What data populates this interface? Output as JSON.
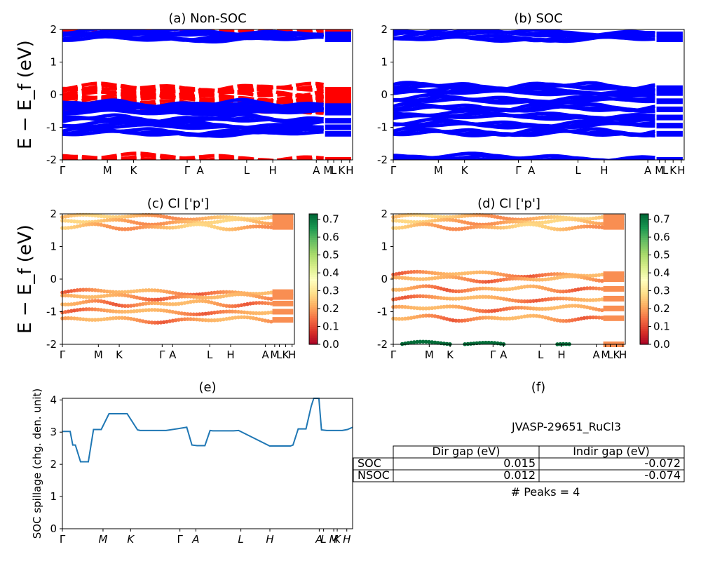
{
  "panels": {
    "a": {
      "title": "(a) Non-SOC"
    },
    "b": {
      "title": "(b) SOC"
    },
    "c": {
      "title": "(c)  Cl ['p']"
    },
    "d": {
      "title": "(d) Cl ['p']"
    },
    "e": {
      "title": "(e)"
    },
    "f": {
      "title": "(f)"
    }
  },
  "band_ylabel": "E − E_f (eV)",
  "band_yticks": [
    "2",
    "1",
    "0",
    "-1",
    "-2"
  ],
  "kpath_labels": [
    "Γ",
    "M",
    "K",
    "Γ",
    "A",
    "L",
    "H",
    "A",
    "M",
    "L",
    "K",
    "H"
  ],
  "kpath_labels_e": [
    "Γ",
    "M",
    "K",
    "Γ",
    "A",
    "L",
    "H",
    "A",
    "L",
    "M",
    "K",
    "H"
  ],
  "colorbar": {
    "ticks": [
      "0.7",
      "0.6",
      "0.5",
      "0.4",
      "0.3",
      "0.2",
      "0.1",
      "0.0"
    ],
    "colormap": "RdYlGn",
    "range": [
      0.0,
      0.73
    ]
  },
  "colors": {
    "nonsoc_up": "#ff0000",
    "nonsoc_down": "#0000ff",
    "soc": "#0000ff",
    "spillage_line": "#1f77b4"
  },
  "info": {
    "material": "JVASP-29651_RuCl3",
    "table": {
      "headers": [
        "",
        "Dir gap (eV)",
        "Indir gap (eV)"
      ],
      "rows": [
        {
          "label": "SOC",
          "dir": "0.015",
          "indir": "-0.072"
        },
        {
          "label": "NSOC",
          "dir": "0.012",
          "indir": "-0.074"
        }
      ]
    },
    "peaks": "# Peaks = 4"
  },
  "chart_data": [
    {
      "type": "line",
      "title": "(a) Non-SOC",
      "ylabel": "E − E_f (eV)",
      "ylim": [
        -2,
        2
      ],
      "x_ticks": [
        "Γ",
        "M",
        "K",
        "Γ",
        "A",
        "L",
        "H",
        "A",
        "M",
        "L",
        "K",
        "H"
      ],
      "series": [
        {
          "name": "",
          "color": "#ff0000",
          "style": "dashed",
          "approx_bands_eV": [
            1.95,
            0.15,
            0.0,
            -0.15,
            -0.3,
            -0.5,
            -2.0
          ]
        },
        {
          "name": "",
          "color": "#0000ff",
          "style": "solid",
          "approx_bands_eV": [
            1.85,
            1.7,
            -0.35,
            -0.45,
            -0.55,
            -0.8,
            -1.0,
            -1.2
          ]
        }
      ]
    },
    {
      "type": "line",
      "title": "(b) SOC",
      "ylim": [
        -2,
        2
      ],
      "x_ticks": [
        "Γ",
        "M",
        "K",
        "Γ",
        "A",
        "L",
        "H",
        "A",
        "M",
        "L",
        "K",
        "H"
      ],
      "series": [
        {
          "name": "",
          "color": "#0000ff",
          "approx_bands_eV": [
            1.85,
            1.7,
            0.2,
            0.05,
            -0.2,
            -0.45,
            -0.7,
            -0.95,
            -1.2,
            -2.0
          ]
        }
      ]
    },
    {
      "type": "scatter",
      "title": "(c)  Cl ['p']",
      "ylim": [
        -2,
        2
      ],
      "colorbar_range": [
        0.0,
        0.73
      ],
      "approx_bands_eV": [
        1.9,
        1.75,
        1.6,
        -0.4,
        -0.55,
        -0.75,
        -1.0,
        -1.25
      ]
    },
    {
      "type": "scatter",
      "title": "(d) Cl ['p']",
      "ylim": [
        -2,
        2
      ],
      "colorbar_range": [
        0.0,
        0.73
      ],
      "approx_bands_eV": [
        1.9,
        1.75,
        1.6,
        0.15,
        0.0,
        -0.3,
        -0.6,
        -0.9,
        -1.2,
        -2.0
      ]
    },
    {
      "type": "line",
      "title": "(e)",
      "ylabel": "SOC spillage (chg. den. unit)",
      "ylim": [
        0,
        4.05
      ],
      "x_ticks": [
        "Γ",
        "M",
        "K",
        "Γ",
        "A",
        "L",
        "H",
        "A",
        "L",
        "M",
        "K",
        "H"
      ],
      "x": [
        0,
        3,
        4,
        5,
        7,
        9,
        10,
        12,
        15,
        18,
        25,
        29,
        30,
        32,
        33,
        40,
        48,
        50,
        52,
        55,
        57,
        58,
        59,
        60,
        62,
        64,
        66,
        68,
        80,
        88,
        89,
        91,
        94,
        96,
        97,
        98,
        99,
        100,
        102,
        104,
        106,
        108,
        110,
        112
      ],
      "values": [
        3.02,
        3.02,
        2.6,
        2.6,
        2.08,
        2.08,
        2.08,
        3.08,
        3.08,
        3.57,
        3.57,
        3.07,
        3.05,
        3.05,
        3.05,
        3.05,
        3.15,
        2.6,
        2.58,
        2.58,
        3.05,
        3.04,
        3.04,
        3.04,
        3.04,
        3.04,
        3.04,
        3.05,
        2.57,
        2.57,
        2.6,
        3.1,
        3.1,
        3.8,
        4.05,
        4.05,
        4.05,
        3.07,
        3.05,
        3.05,
        3.05,
        3.05,
        3.08,
        3.15
      ]
    }
  ]
}
